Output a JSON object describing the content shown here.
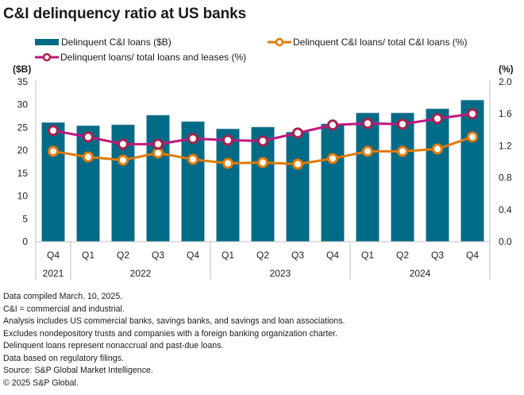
{
  "title": "C&I delinquency ratio at US banks",
  "legend": {
    "bar": "Delinquent C&I loans ($B)",
    "orange": "Delinquent C&I loans/ total C&I loans (%)",
    "magenta": "Delinquent loans/ total loans and leases (%)"
  },
  "axes": {
    "left_unit": "($B)",
    "right_unit": "(%)"
  },
  "colors": {
    "bar": "#006b86",
    "orange": "#e07b0c",
    "magenta": "#c0177f",
    "magenta_marker": "#a8224f",
    "axis": "#bfbfbf"
  },
  "chart_data": {
    "type": "bar",
    "title": "C&I delinquency ratio at US banks",
    "categories": [
      "Q4",
      "Q1",
      "Q2",
      "Q3",
      "Q4",
      "Q1",
      "Q2",
      "Q3",
      "Q4",
      "Q1",
      "Q2",
      "Q3",
      "Q4"
    ],
    "year_groups": [
      {
        "label": "2021",
        "count": 1
      },
      {
        "label": "2022",
        "count": 4
      },
      {
        "label": "2023",
        "count": 4
      },
      {
        "label": "2024",
        "count": 4
      }
    ],
    "series": [
      {
        "name": "Delinquent C&I loans ($B)",
        "type": "bar",
        "axis": "left",
        "values": [
          26.1,
          25.4,
          25.6,
          27.7,
          26.3,
          24.7,
          25.1,
          24.0,
          25.8,
          28.2,
          28.2,
          29.1,
          31.0
        ]
      },
      {
        "name": "Delinquent C&I loans/ total C&I loans (%)",
        "type": "line",
        "axis": "right",
        "values": [
          1.13,
          1.06,
          1.02,
          1.11,
          1.03,
          0.98,
          0.99,
          0.97,
          1.04,
          1.13,
          1.13,
          1.16,
          1.31
        ]
      },
      {
        "name": "Delinquent loans/ total loans and leases (%)",
        "type": "line",
        "axis": "right",
        "values": [
          1.39,
          1.31,
          1.22,
          1.22,
          1.29,
          1.27,
          1.26,
          1.36,
          1.46,
          1.48,
          1.47,
          1.54,
          1.6
        ]
      }
    ],
    "ylabel_left": "($B)",
    "ylabel_right": "(%)",
    "ylim_left": [
      0,
      35
    ],
    "ylim_right": [
      0,
      2.0
    ],
    "yticks_left": [
      "0",
      "5",
      "10",
      "15",
      "20",
      "25",
      "30",
      "35"
    ],
    "yticks_right": [
      "0.0",
      "0.4",
      "0.8",
      "1.2",
      "1.6",
      "2.0"
    ],
    "grid": false,
    "legend_position": "top"
  },
  "footnotes": [
    "Data compiled March. 10, 2025.",
    "C&I = commercial and industrial.",
    "Analysis includes US commercial banks, savings banks, and savings and loan associations.",
    "Excludes nondepository trusts and companies with a foreign banking organization charter.",
    "Delinquent loans represent nonaccrual and past-due loans.",
    "Data based on regulatory filings.",
    "Source: S&P Global Market Intelligence.",
    "© 2025 S&P Global."
  ]
}
